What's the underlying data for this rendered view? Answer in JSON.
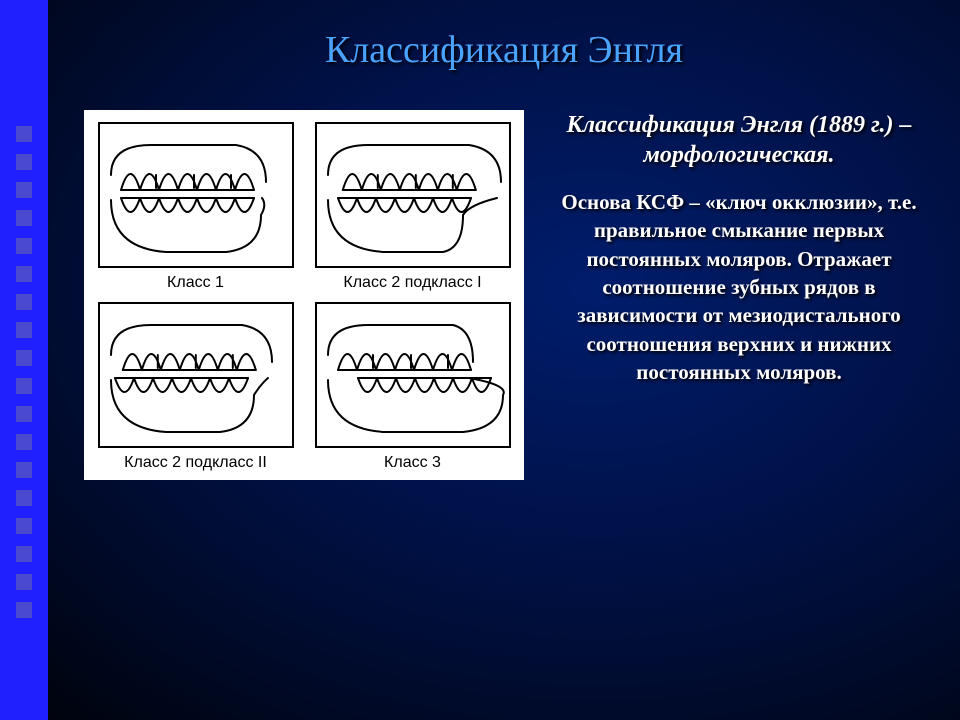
{
  "sidebar": {
    "square_count": 18,
    "bg_color": "#2020ff",
    "item_color": "#4a4ad0"
  },
  "slide": {
    "title": "Классификация Энгля",
    "title_color": "#4aa3ff",
    "subtitle": "Классификация Энгля (1889 г.) – морфологическая.",
    "body": "Основа КСФ – «ключ окклюзии», т.е. правильное смыкание первых постоянных моляров. Отражает соотношение зубных рядов в зависимости от мезиодистального соотношения верхних и нижних постоянных моляров.",
    "background_gradient": [
      "#001d6c",
      "#001147",
      "#000820",
      "#000000"
    ]
  },
  "figure": {
    "bg": "#ffffff",
    "stroke": "#000000",
    "stroke_width": 2,
    "panels": [
      {
        "caption": "Класс 1",
        "profile": "normal"
      },
      {
        "caption": "Класс 2 подкласс I",
        "profile": "overjet"
      },
      {
        "caption": "Класс 2 подкласс II",
        "profile": "deep"
      },
      {
        "caption": "Класс 3",
        "profile": "underbite"
      }
    ]
  }
}
